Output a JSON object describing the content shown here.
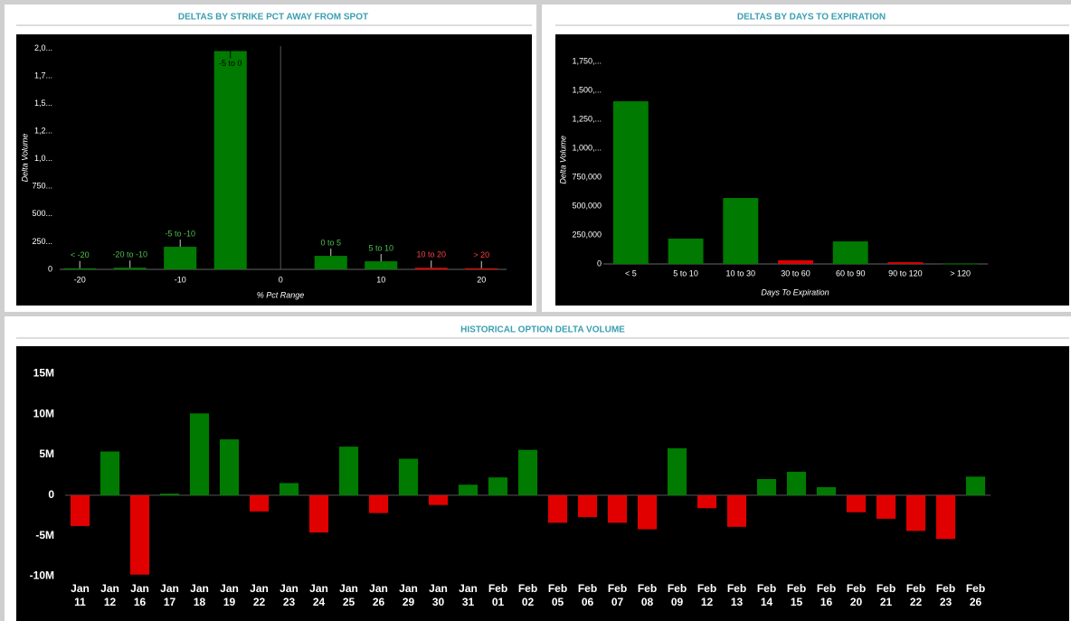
{
  "chart_data": [
    {
      "type": "bar_numeric",
      "title": "DELTAS BY STRIKE PCT AWAY FROM SPOT",
      "x_label": "% Pct Range",
      "y_label": "Delta Volume",
      "x": [
        -20,
        -15,
        -10,
        -5,
        5,
        10,
        15,
        20
      ],
      "point_labels": [
        "< -20",
        "-20 to -10",
        "-5 to -10",
        "-5 to 0",
        "0 to 5",
        "5 to 10",
        "10 to 20",
        "> 20"
      ],
      "values": [
        10,
        15,
        204,
        1975,
        122,
        73,
        15,
        10
      ],
      "colors": [
        "#007a00",
        "#007a00",
        "#007a00",
        "#007a00",
        "#007a00",
        "#007a00",
        "#e00000",
        "#e00000"
      ],
      "xlim": [
        -22,
        22.5
      ],
      "xticks": [
        -20,
        -10,
        0,
        10,
        20
      ],
      "ylim": [
        0,
        2020
      ],
      "yticks": [
        0,
        {
          "value": 250,
          "label": "250..."
        },
        {
          "value": 500,
          "label": "500..."
        },
        {
          "value": 750,
          "label": "750..."
        },
        {
          "value": 1000,
          "label": "1,0..."
        },
        {
          "value": 1250,
          "label": "1,2..."
        },
        {
          "value": 1500,
          "label": "1,5..."
        },
        {
          "value": 1750,
          "label": "1,7..."
        },
        {
          "value": 2000,
          "label": "2,0..."
        }
      ]
    },
    {
      "type": "bar",
      "title": "DELTAS BY DAYS TO EXPIRATION",
      "x_label": "Days To Expiration",
      "y_label": "Delta Volume",
      "categories": [
        "< 5",
        "5 to 10",
        "10 to 30",
        "30 to 60",
        "60 to 90",
        "90 to 120",
        "> 120"
      ],
      "values": [
        1406000,
        219000,
        570000,
        31000,
        195000,
        15000,
        5000
      ],
      "colors": [
        "#007a00",
        "#007a00",
        "#007a00",
        "#e00000",
        "#007a00",
        "#e00000",
        "#007a00"
      ],
      "ylim": [
        0,
        1800000
      ],
      "yticks": [
        0,
        {
          "value": 250000,
          "label": "250,000"
        },
        {
          "value": 500000,
          "label": "500,000"
        },
        {
          "value": 750000,
          "label": "750,000"
        },
        {
          "value": 1000000,
          "label": "1,000,..."
        },
        {
          "value": 1250000,
          "label": "1,250,..."
        },
        {
          "value": 1500000,
          "label": "1,500,..."
        },
        {
          "value": 1750000,
          "label": "1,750,..."
        }
      ]
    },
    {
      "type": "bar_signed",
      "title": "HISTORICAL OPTION DELTA VOLUME",
      "categories": [
        [
          "Jan",
          "11"
        ],
        [
          "Jan",
          "12"
        ],
        [
          "Jan",
          "16"
        ],
        [
          "Jan",
          "17"
        ],
        [
          "Jan",
          "18"
        ],
        [
          "Jan",
          "19"
        ],
        [
          "Jan",
          "22"
        ],
        [
          "Jan",
          "23"
        ],
        [
          "Jan",
          "24"
        ],
        [
          "Jan",
          "25"
        ],
        [
          "Jan",
          "26"
        ],
        [
          "Jan",
          "29"
        ],
        [
          "Jan",
          "30"
        ],
        [
          "Jan",
          "31"
        ],
        [
          "Feb",
          "01"
        ],
        [
          "Feb",
          "02"
        ],
        [
          "Feb",
          "05"
        ],
        [
          "Feb",
          "06"
        ],
        [
          "Feb",
          "07"
        ],
        [
          "Feb",
          "08"
        ],
        [
          "Feb",
          "09"
        ],
        [
          "Feb",
          "12"
        ],
        [
          "Feb",
          "13"
        ],
        [
          "Feb",
          "14"
        ],
        [
          "Feb",
          "15"
        ],
        [
          "Feb",
          "16"
        ],
        [
          "Feb",
          "20"
        ],
        [
          "Feb",
          "21"
        ],
        [
          "Feb",
          "22"
        ],
        [
          "Feb",
          "23"
        ],
        [
          "Feb",
          "26"
        ]
      ],
      "values": [
        -3800000,
        5400000,
        -9800000,
        200000,
        10100000,
        6900000,
        -2000000,
        1500000,
        -4600000,
        6000000,
        -2200000,
        4500000,
        -1200000,
        1300000,
        2200000,
        5600000,
        -3400000,
        -2700000,
        -3400000,
        -4200000,
        5800000,
        -1600000,
        -3900000,
        2000000,
        2900000,
        1000000,
        -2100000,
        -2900000,
        -4400000,
        -5400000,
        2300000
      ],
      "color_positive": "#007a00",
      "color_negative": "#e00000",
      "ylim": [
        -10500000,
        16500000
      ],
      "yticks": [
        {
          "value": -10000000,
          "label": "-10M"
        },
        {
          "value": -5000000,
          "label": "-5M"
        },
        0,
        {
          "value": 5000000,
          "label": "5M"
        },
        {
          "value": 10000000,
          "label": "10M"
        },
        {
          "value": 15000000,
          "label": "15M"
        }
      ]
    }
  ]
}
